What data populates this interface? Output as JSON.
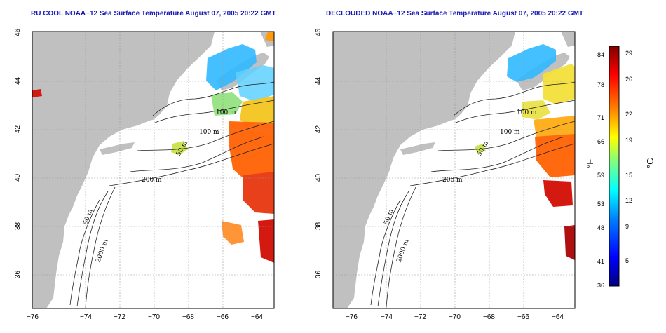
{
  "panels": [
    {
      "title": "RU COOL NOAA−12 Sea Surface Temperature August 07, 2005 20:22 GMT",
      "x_ticks": [
        "−76",
        "−74",
        "−72",
        "−70",
        "−68",
        "−66",
        "−64"
      ],
      "y_ticks": [
        "46",
        "44",
        "42",
        "40",
        "38",
        "36"
      ],
      "contour_labels": [
        "100 m",
        "100 m",
        "50 m",
        "200 m",
        "50 m",
        "2000 m"
      ]
    },
    {
      "title": "DECLOUDED NOAA−12 Sea Surface Temperature August 07, 2005 20:22 GMT",
      "x_ticks": [
        "−76",
        "−74",
        "−72",
        "−70",
        "−68",
        "−66",
        "−64"
      ],
      "y_ticks": [
        "46",
        "44",
        "42",
        "40",
        "38",
        "36"
      ],
      "contour_labels": [
        "100 m",
        "100 m",
        "50 m",
        "200 m",
        "50 m",
        "2000 m"
      ]
    }
  ],
  "colorbar": {
    "fahrenheit_ticks": [
      "84",
      "78",
      "71",
      "66",
      "59",
      "53",
      "48",
      "41",
      "36"
    ],
    "celsius_ticks": [
      "29",
      "26",
      "22",
      "19",
      "15",
      "12",
      "9",
      "5"
    ],
    "fahrenheit_unit": "°F",
    "celsius_unit": "°C",
    "stops": [
      "#000080",
      "#0000ff",
      "#0080ff",
      "#00ffff",
      "#80ff80",
      "#ffff00",
      "#ff8000",
      "#ff0000",
      "#800000"
    ]
  },
  "colors": {
    "land": "#c0c0c0",
    "ocean": "#ffffff",
    "warm": "#ff6a10",
    "hot": "#d41a10",
    "cool": "#30b8ff",
    "mid": "#c8e040"
  }
}
